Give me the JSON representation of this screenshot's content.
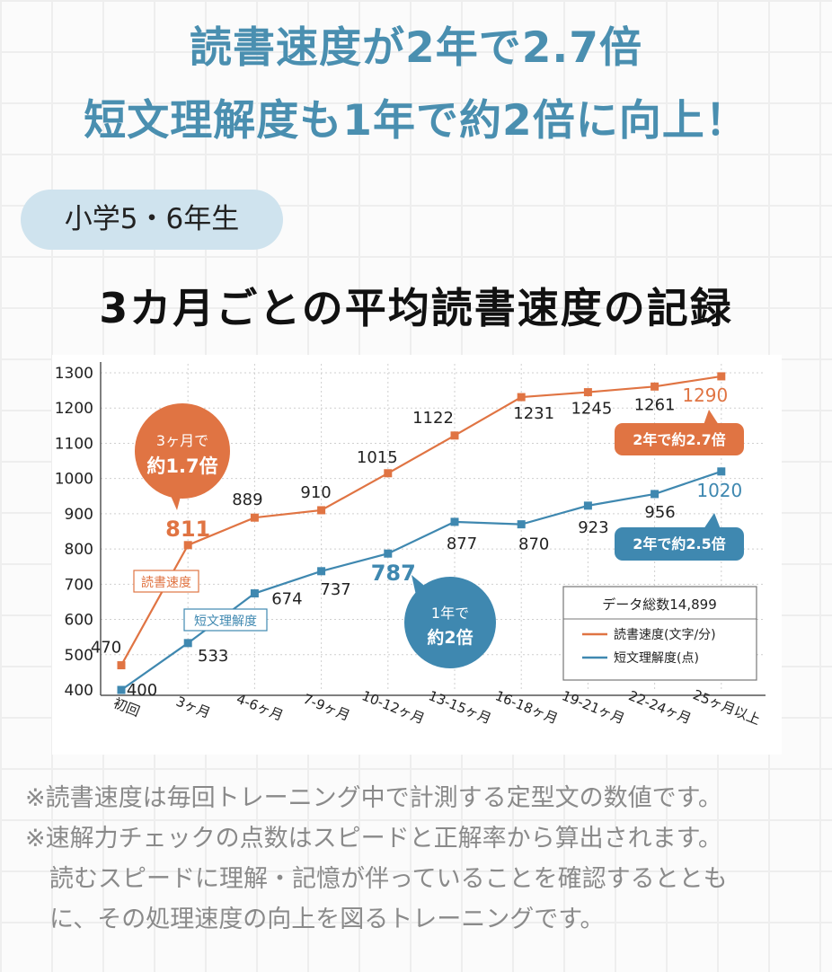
{
  "headline": {
    "line1": "読書速度が2年で2.7倍",
    "line2": "短文理解度も1年で約2倍に向上！"
  },
  "grade_badge": "小学5・6年生",
  "chart_data": {
    "type": "line",
    "title": "3カ月ごとの平均読書速度の記録",
    "categories": [
      "初回",
      "3ヶ月",
      "4-6ヶ月",
      "7-9ヶ月",
      "10-12ヶ月",
      "13-15ヶ月",
      "16-18ヶ月",
      "19-21ヶ月",
      "22-24ヶ月",
      "25ヶ月以上"
    ],
    "ylim": [
      400,
      1300
    ],
    "yticks": [
      400,
      500,
      600,
      700,
      800,
      900,
      1000,
      1100,
      1200,
      1300
    ],
    "grid": true,
    "series": [
      {
        "name": "読書速度",
        "color": "#e07443",
        "values": [
          470,
          811,
          889,
          910,
          1015,
          1122,
          1231,
          1245,
          1261,
          1290
        ]
      },
      {
        "name": "短文理解度",
        "color": "#3f88b0",
        "values": [
          400,
          533,
          674,
          737,
          787,
          877,
          870,
          923,
          956,
          1020
        ]
      }
    ],
    "legend": {
      "placement": "bottom-right",
      "header": "データ総数14,899",
      "entries": [
        {
          "text": "読書速度(文字/分)",
          "color": "#e07443"
        },
        {
          "text": "短文理解度(点)",
          "color": "#3f88b0"
        }
      ]
    },
    "annotations": {
      "bubble_speed_early": {
        "line1": "3ヶ月で",
        "line2": "約1.7倍"
      },
      "bubble_comp_year": {
        "line1": "1年で",
        "line2": "約2倍"
      },
      "callout_speed": "2年で約2.7倍",
      "callout_comp": "2年で約2.5倍"
    }
  },
  "notes": [
    "※読書速度は毎回トレーニング中で計測する定型文の数値です。",
    "※速解力チェックの点数はスピードと正解率から算出されます。",
    "読むスピードに理解・記憶が伴っていることを確認するととも",
    "に、その処理速度の向上を図るトレーニングです。"
  ]
}
